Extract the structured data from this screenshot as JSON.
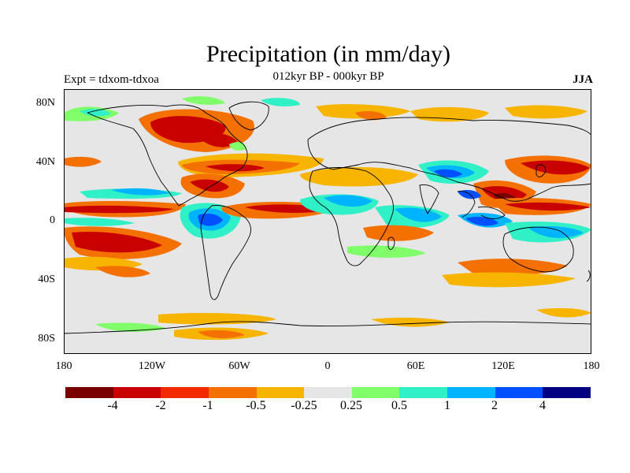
{
  "title": "Precipitation (in mm/day)",
  "subtitle": "012kyr BP - 000kyr BP",
  "left_label": "Expt = tdxom-tdxoa",
  "right_label": "JJA",
  "lat_labels": [
    "80N",
    "40N",
    "0",
    "40S",
    "80S"
  ],
  "lon_labels": [
    "180",
    "120W",
    "60W",
    "0",
    "60E",
    "120E",
    "180"
  ],
  "colorbar": {
    "colors": [
      "#7a0000",
      "#c80000",
      "#f22800",
      "#f47000",
      "#f7b400",
      "#e6e6e6",
      "#80ff6a",
      "#30f0c8",
      "#00b4ff",
      "#0050ff",
      "#000080"
    ],
    "labels": [
      "-4",
      "-2",
      "-1",
      "-0.5",
      "-0.25",
      "0.25",
      "0.5",
      "1",
      "2",
      "4"
    ]
  },
  "colors": {
    "ocean_background": "#e6e6e6",
    "coastline": "#000000"
  }
}
